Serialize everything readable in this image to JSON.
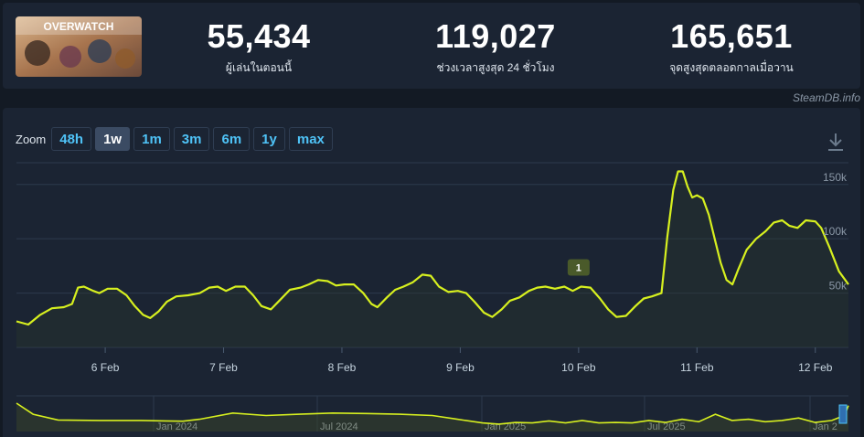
{
  "header": {
    "logo_text": "OVERWATCH",
    "stats": [
      {
        "value": "55,434",
        "label": "ผู้เล่นในตอนนี้"
      },
      {
        "value": "119,027",
        "label": "ช่วงเวลาสูงสุด 24 ชั่วโมง"
      },
      {
        "value": "165,651",
        "label": "จุดสูงสุดตลอดกาลเมื่อวาน"
      }
    ]
  },
  "credit": "SteamDB.info",
  "zoom": {
    "label": "Zoom",
    "options": [
      "48h",
      "1w",
      "1m",
      "3m",
      "6m",
      "1y",
      "max"
    ],
    "active": "1w"
  },
  "icons": {
    "download": "download-icon"
  },
  "colors": {
    "line": "#d7f01f",
    "accent": "#4fc3f7"
  },
  "chart_data": {
    "type": "line",
    "x_ticks": [
      "6 Feb",
      "7 Feb",
      "8 Feb",
      "9 Feb",
      "10 Feb",
      "11 Feb",
      "12 Feb"
    ],
    "y_ticks": [
      "50k",
      "100k",
      "150k"
    ],
    "ylim": [
      0,
      170000
    ],
    "grid": true,
    "marker": {
      "label": "1",
      "x": "10 Feb"
    },
    "series": [
      {
        "values": [
          [
            5.25,
            24000
          ],
          [
            5.35,
            21000
          ],
          [
            5.45,
            30000
          ],
          [
            5.55,
            36000
          ],
          [
            5.65,
            37000
          ],
          [
            5.72,
            40000
          ],
          [
            5.77,
            55000
          ],
          [
            5.82,
            56000
          ],
          [
            5.9,
            52000
          ],
          [
            5.95,
            50000
          ],
          [
            6.02,
            54000
          ],
          [
            6.1,
            54000
          ],
          [
            6.18,
            48000
          ],
          [
            6.25,
            38000
          ],
          [
            6.32,
            30000
          ],
          [
            6.38,
            27000
          ],
          [
            6.45,
            33000
          ],
          [
            6.52,
            42000
          ],
          [
            6.6,
            47000
          ],
          [
            6.7,
            48000
          ],
          [
            6.8,
            50000
          ],
          [
            6.88,
            55000
          ],
          [
            6.95,
            56000
          ],
          [
            7.02,
            52000
          ],
          [
            7.1,
            56000
          ],
          [
            7.18,
            56000
          ],
          [
            7.25,
            48000
          ],
          [
            7.32,
            38000
          ],
          [
            7.4,
            35000
          ],
          [
            7.48,
            44000
          ],
          [
            7.56,
            53000
          ],
          [
            7.65,
            55000
          ],
          [
            7.72,
            58000
          ],
          [
            7.8,
            62000
          ],
          [
            7.88,
            61000
          ],
          [
            7.95,
            57000
          ],
          [
            8.02,
            58000
          ],
          [
            8.1,
            58000
          ],
          [
            8.18,
            50000
          ],
          [
            8.25,
            40000
          ],
          [
            8.3,
            37000
          ],
          [
            8.38,
            46000
          ],
          [
            8.45,
            53000
          ],
          [
            8.52,
            56000
          ],
          [
            8.6,
            60000
          ],
          [
            8.68,
            67000
          ],
          [
            8.75,
            66000
          ],
          [
            8.82,
            56000
          ],
          [
            8.9,
            51000
          ],
          [
            8.98,
            52000
          ],
          [
            9.05,
            50000
          ],
          [
            9.12,
            42000
          ],
          [
            9.2,
            32000
          ],
          [
            9.27,
            28000
          ],
          [
            9.35,
            35000
          ],
          [
            9.42,
            43000
          ],
          [
            9.5,
            46000
          ],
          [
            9.58,
            52000
          ],
          [
            9.65,
            55000
          ],
          [
            9.72,
            56000
          ],
          [
            9.8,
            54000
          ],
          [
            9.88,
            56000
          ],
          [
            9.95,
            52000
          ],
          [
            10.02,
            56000
          ],
          [
            10.1,
            55000
          ],
          [
            10.18,
            45000
          ],
          [
            10.25,
            35000
          ],
          [
            10.32,
            28000
          ],
          [
            10.4,
            29000
          ],
          [
            10.48,
            38000
          ],
          [
            10.55,
            45000
          ],
          [
            10.62,
            47000
          ],
          [
            10.7,
            50000
          ],
          [
            10.75,
            102000
          ],
          [
            10.8,
            145000
          ],
          [
            10.84,
            162000
          ],
          [
            10.88,
            162000
          ],
          [
            10.92,
            148000
          ],
          [
            10.96,
            138000
          ],
          [
            11.0,
            140000
          ],
          [
            11.05,
            137000
          ],
          [
            11.1,
            122000
          ],
          [
            11.15,
            100000
          ],
          [
            11.2,
            78000
          ],
          [
            11.25,
            62000
          ],
          [
            11.3,
            58000
          ],
          [
            11.35,
            72000
          ],
          [
            11.42,
            90000
          ],
          [
            11.5,
            100000
          ],
          [
            11.58,
            107000
          ],
          [
            11.65,
            115000
          ],
          [
            11.72,
            117000
          ],
          [
            11.78,
            112000
          ],
          [
            11.85,
            110000
          ],
          [
            11.92,
            117000
          ],
          [
            12.0,
            116000
          ],
          [
            12.05,
            110000
          ],
          [
            12.12,
            92000
          ],
          [
            12.2,
            70000
          ],
          [
            12.28,
            58000
          ]
        ]
      }
    ],
    "overview": {
      "labels": [
        "Jan 2024",
        "Jul 2024",
        "Jan 2025",
        "Jul 2025",
        "Jan 2"
      ],
      "values": [
        [
          0,
          1.0
        ],
        [
          0.02,
          0.55
        ],
        [
          0.05,
          0.32
        ],
        [
          0.1,
          0.3
        ],
        [
          0.15,
          0.3
        ],
        [
          0.18,
          0.28
        ],
        [
          0.2,
          0.27
        ],
        [
          0.22,
          0.35
        ],
        [
          0.26,
          0.6
        ],
        [
          0.3,
          0.5
        ],
        [
          0.34,
          0.55
        ],
        [
          0.38,
          0.6
        ],
        [
          0.42,
          0.58
        ],
        [
          0.46,
          0.55
        ],
        [
          0.5,
          0.5
        ],
        [
          0.53,
          0.35
        ],
        [
          0.56,
          0.2
        ],
        [
          0.58,
          0.15
        ],
        [
          0.6,
          0.22
        ],
        [
          0.62,
          0.2
        ],
        [
          0.64,
          0.28
        ],
        [
          0.66,
          0.2
        ],
        [
          0.68,
          0.3
        ],
        [
          0.7,
          0.2
        ],
        [
          0.72,
          0.22
        ],
        [
          0.74,
          0.2
        ],
        [
          0.76,
          0.3
        ],
        [
          0.78,
          0.22
        ],
        [
          0.8,
          0.35
        ],
        [
          0.82,
          0.25
        ],
        [
          0.84,
          0.55
        ],
        [
          0.86,
          0.3
        ],
        [
          0.88,
          0.35
        ],
        [
          0.9,
          0.25
        ],
        [
          0.92,
          0.3
        ],
        [
          0.94,
          0.4
        ],
        [
          0.96,
          0.22
        ],
        [
          0.98,
          0.3
        ],
        [
          0.995,
          0.5
        ],
        [
          1.0,
          0.9
        ]
      ]
    }
  }
}
